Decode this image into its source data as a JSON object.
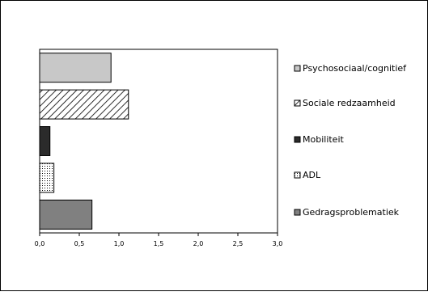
{
  "chart_data": {
    "type": "bar",
    "orientation": "horizontal",
    "categories": [
      "Psychosociaal/cognitief",
      "Sociale redzaamheid",
      "Mobiliteit",
      "ADL",
      "Gedragsproblematiek"
    ],
    "values": [
      0.9,
      1.12,
      0.13,
      0.18,
      0.66
    ],
    "xlim": [
      0,
      3.0
    ],
    "xticks": [
      "0,0",
      "0,5",
      "1,0",
      "1,5",
      "2,0",
      "2,5",
      "3,0"
    ],
    "grid": false,
    "legend_position": "right",
    "title": "",
    "xlabel": "",
    "ylabel": "",
    "series_styles": [
      {
        "category": "Psychosociaal/cognitief",
        "fill": "#c8c8c8",
        "pattern": "solid"
      },
      {
        "category": "Sociale redzaamheid",
        "fill": "#ffffff",
        "pattern": "diagonal-hatch"
      },
      {
        "category": "Mobiliteit",
        "fill": "#2b2b2b",
        "pattern": "solid"
      },
      {
        "category": "ADL",
        "fill": "#ffffff",
        "pattern": "dots"
      },
      {
        "category": "Gedragsproblematiek",
        "fill": "#808080",
        "pattern": "solid"
      }
    ]
  }
}
